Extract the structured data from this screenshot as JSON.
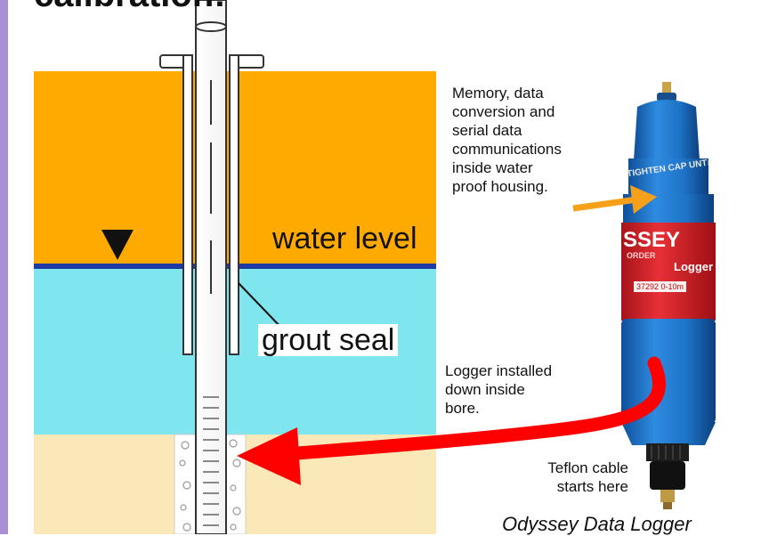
{
  "title": "calibration:",
  "labels": {
    "water_level": "water level",
    "grout_seal": "grout seal",
    "memory_note": "Memory, data\nconversion and\nserial data\ncommunications\ninside water\nproof housing.",
    "logger_installed": "Logger installed\ndown inside\nbore.",
    "teflon_cable": "Teflon cable\nstarts here",
    "caption": "Odyssey Data Logger"
  },
  "device_text": {
    "cap_text": "TIGHTEN CAP UNTIL IT",
    "brand": "SSEY",
    "sub_brand": "ORDER",
    "logger": "Logger",
    "serial": "37292 0-10m"
  },
  "colors": {
    "orange_soil": "#ffaa00",
    "water": "#7fe6f0",
    "sand": "#fae8b8",
    "water_line": "#1f3aa5",
    "arrow_red": "#ff0000",
    "arrow_orange": "#f7a11a",
    "logger_blue": "#1e73c6",
    "logger_red": "#e1262b",
    "accent_bar": "#a98fd6"
  }
}
